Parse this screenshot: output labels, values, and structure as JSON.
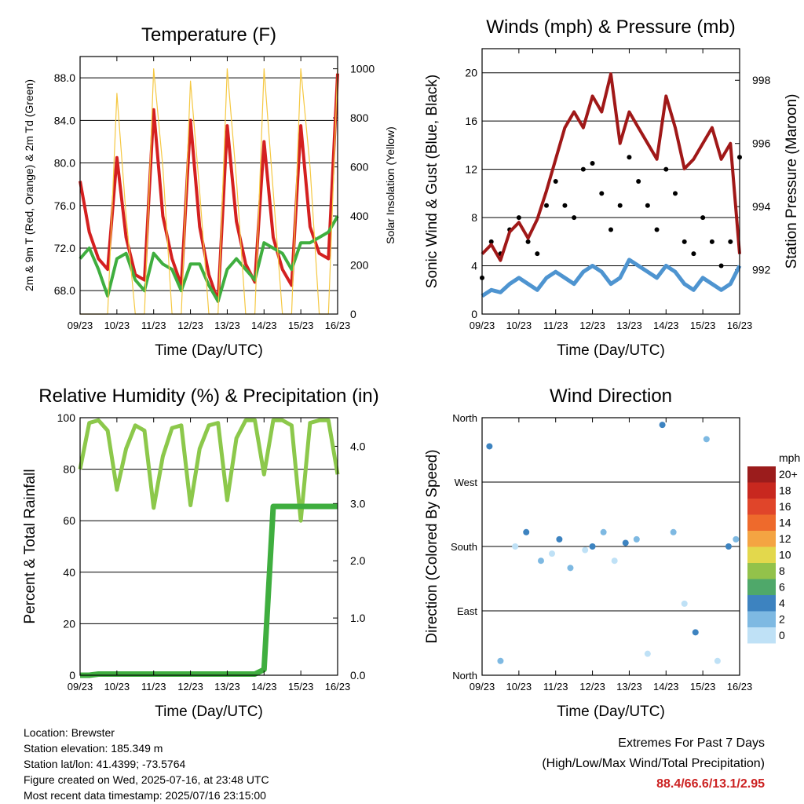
{
  "x_ticks": [
    "09/23",
    "10/23",
    "11/23",
    "12/23",
    "13/23",
    "14/23",
    "15/23",
    "16/23"
  ],
  "x_label": "Time (Day/UTC)",
  "charts": {
    "temperature": {
      "title": "Temperature (F)",
      "ylabel_left": "2m & 9m T (Red, Orange) & 2m Td (Green)",
      "ylabel_right": "Solar Insolation (Yellow)",
      "yticks_left": [
        "68.0",
        "72.0",
        "76.0",
        "80.0",
        "84.0",
        "88.0"
      ],
      "yticks_right": [
        "0",
        "200",
        "400",
        "600",
        "800",
        "1000"
      ]
    },
    "winds": {
      "title": "Winds (mph) & Pressure (mb)",
      "ylabel_left": "Sonic Wind & Gust (Blue, Black)",
      "ylabel_right": "Station Pressure (Maroon)",
      "yticks_left": [
        "0",
        "4",
        "8",
        "12",
        "16",
        "20"
      ],
      "yticks_right": [
        "992",
        "994",
        "996",
        "998"
      ]
    },
    "humidity": {
      "title": "Relative Humidity (%) & Precipitation (in)",
      "ylabel_left": "Percent & Total Rainfall",
      "yticks_left": [
        "0",
        "20",
        "40",
        "60",
        "80",
        "100"
      ],
      "yticks_right": [
        "0.0",
        "1.0",
        "2.0",
        "3.0",
        "4.0"
      ]
    },
    "direction": {
      "title": "Wind Direction",
      "ylabel_left": "Direction (Colored By Speed)",
      "yticks_left": [
        "North",
        "East",
        "South",
        "West",
        "North"
      ],
      "legend_title": "mph",
      "legend_labels": [
        "20+",
        "18",
        "16",
        "14",
        "12",
        "10",
        "8",
        "6",
        "4",
        "2",
        "0"
      ],
      "legend_colors": [
        "#9b1c1c",
        "#c8281f",
        "#e0452a",
        "#ee6a2c",
        "#f4a442",
        "#e3d84c",
        "#93c24a",
        "#4fa86a",
        "#3d83c0",
        "#7eb9e2",
        "#bfe1f6"
      ]
    }
  },
  "chart_data": [
    {
      "type": "line",
      "title": "Temperature (F)",
      "x": [
        0,
        0.25,
        0.5,
        0.75,
        1,
        1.25,
        1.5,
        1.75,
        2,
        2.25,
        2.5,
        2.75,
        3,
        3.25,
        3.5,
        3.75,
        4,
        4.25,
        4.5,
        4.75,
        5,
        5.25,
        5.5,
        5.75,
        6,
        6.25,
        6.5,
        6.75,
        7
      ],
      "series": [
        {
          "name": "2m T",
          "color": "#d42020",
          "values": [
            78.3,
            73.5,
            71.0,
            70.0,
            80.5,
            73.0,
            69.5,
            69.0,
            85.0,
            75.0,
            71.0,
            68.5,
            84.0,
            74.0,
            69.5,
            67.0,
            83.5,
            74.5,
            70.5,
            68.8,
            82.0,
            73.0,
            70.0,
            68.5,
            83.5,
            74.0,
            71.5,
            71.0,
            88.4
          ]
        },
        {
          "name": "2m Td",
          "color": "#3fae3f",
          "values": [
            71.0,
            72.0,
            70.0,
            67.5,
            71.0,
            71.5,
            69.0,
            68.0,
            71.5,
            70.5,
            70.0,
            68.0,
            70.5,
            70.5,
            68.5,
            67.0,
            70.0,
            71.0,
            70.0,
            69.0,
            72.5,
            72.0,
            71.5,
            70.0,
            72.5,
            72.5,
            73.0,
            73.5,
            75.0
          ]
        },
        {
          "name": "Solar Insolation",
          "color": "#f5c842",
          "values": [
            0,
            0,
            0,
            0,
            900,
            400,
            0,
            0,
            1000,
            600,
            0,
            0,
            950,
            500,
            0,
            0,
            1000,
            550,
            0,
            0,
            1000,
            500,
            0,
            0,
            1000,
            600,
            0,
            0,
            1000
          ]
        }
      ],
      "ylim": [
        65.8,
        90.0
      ],
      "ylim_right": [
        0,
        1050
      ]
    },
    {
      "type": "line",
      "title": "Winds (mph) & Pressure (mb)",
      "x": [
        0,
        0.25,
        0.5,
        0.75,
        1,
        1.25,
        1.5,
        1.75,
        2,
        2.25,
        2.5,
        2.75,
        3,
        3.25,
        3.5,
        3.75,
        4,
        4.25,
        4.5,
        4.75,
        5,
        5.25,
        5.5,
        5.75,
        6,
        6.25,
        6.5,
        6.75,
        7
      ],
      "series": [
        {
          "name": "Sonic Wind",
          "color": "#4e94d0",
          "values": [
            1.5,
            2.0,
            1.8,
            2.5,
            3.0,
            2.5,
            2.0,
            3.0,
            3.5,
            3.0,
            2.5,
            3.5,
            4.0,
            3.5,
            2.5,
            3.0,
            4.5,
            4.0,
            3.5,
            3.0,
            4.0,
            3.5,
            2.5,
            2.0,
            3.0,
            2.5,
            2.0,
            2.5,
            4.0
          ]
        },
        {
          "name": "Gust",
          "color": "#000000",
          "values": [
            3.0,
            6.0,
            5.0,
            7.0,
            8.0,
            6.0,
            5.0,
            9.0,
            11.0,
            9.0,
            8.0,
            12.0,
            12.5,
            10.0,
            7.0,
            9.0,
            13.0,
            11.0,
            9.0,
            7.0,
            12.0,
            10.0,
            6.0,
            5.0,
            8.0,
            6.0,
            4.0,
            6.0,
            13.0
          ]
        },
        {
          "name": "Station Pressure",
          "color": "#a01818",
          "values": [
            992.5,
            992.8,
            992.3,
            993.2,
            993.5,
            993.0,
            993.6,
            994.5,
            995.5,
            996.5,
            997.0,
            996.5,
            997.5,
            997.0,
            998.2,
            996.0,
            997.0,
            996.5,
            996.0,
            995.5,
            997.5,
            996.5,
            995.2,
            995.5,
            996.0,
            996.5,
            995.5,
            996.0,
            992.5
          ]
        }
      ],
      "ylim": [
        0,
        22
      ],
      "ylim_right": [
        990.6,
        999.0
      ]
    },
    {
      "type": "line",
      "title": "Relative Humidity (%) & Precipitation (in)",
      "x": [
        0,
        0.25,
        0.5,
        0.75,
        1,
        1.25,
        1.5,
        1.75,
        2,
        2.25,
        2.5,
        2.75,
        3,
        3.25,
        3.5,
        3.75,
        4,
        4.25,
        4.5,
        4.75,
        5,
        5.25,
        5.5,
        5.75,
        6,
        6.25,
        6.5,
        6.75,
        7
      ],
      "series": [
        {
          "name": "Relative Humidity",
          "color": "#8cc84b",
          "values": [
            80,
            98,
            99,
            95,
            72,
            88,
            97,
            95,
            65,
            85,
            96,
            97,
            66,
            88,
            97,
            98,
            68,
            92,
            99,
            99,
            78,
            99,
            99,
            97,
            60,
            98,
            99,
            99,
            78
          ]
        },
        {
          "name": "Total Rainfall",
          "color": "#3fae3f",
          "values": [
            0.0,
            0.0,
            0.02,
            0.02,
            0.02,
            0.02,
            0.02,
            0.02,
            0.02,
            0.02,
            0.02,
            0.02,
            0.02,
            0.02,
            0.02,
            0.02,
            0.02,
            0.02,
            0.02,
            0.02,
            0.1,
            2.95,
            2.95,
            2.95,
            2.95,
            2.95,
            2.95,
            2.95,
            2.95
          ]
        }
      ],
      "ylim": [
        0,
        100
      ],
      "ylim_right": [
        0,
        4.5
      ]
    },
    {
      "type": "scatter",
      "title": "Wind Direction",
      "x": [
        0.2,
        0.5,
        0.9,
        1.2,
        1.6,
        1.9,
        2.1,
        2.4,
        2.8,
        3.0,
        3.3,
        3.6,
        3.9,
        4.2,
        4.5,
        4.9,
        5.2,
        5.5,
        5.8,
        6.1,
        6.4,
        6.7,
        6.9
      ],
      "values": [
        320,
        20,
        180,
        200,
        160,
        170,
        190,
        150,
        175,
        180,
        200,
        160,
        185,
        190,
        30,
        350,
        200,
        100,
        60,
        330,
        20,
        180,
        190
      ],
      "ylim": [
        0,
        360
      ]
    }
  ],
  "info": {
    "location": "Location: Brewster",
    "elevation": "Station elevation: 185.349 m",
    "latlon": "Station lat/lon: 41.4399; -73.5764",
    "created": "Figure created on Wed, 2025-07-16, at 23:48 UTC",
    "recent": "Most recent data timestamp: 2025/07/16 23:15:00"
  },
  "extremes": {
    "title": "Extremes For Past 7 Days",
    "subtitle": "(High/Low/Max Wind/Total Precipitation)",
    "values": "88.4/66.6/13.1/2.95"
  }
}
